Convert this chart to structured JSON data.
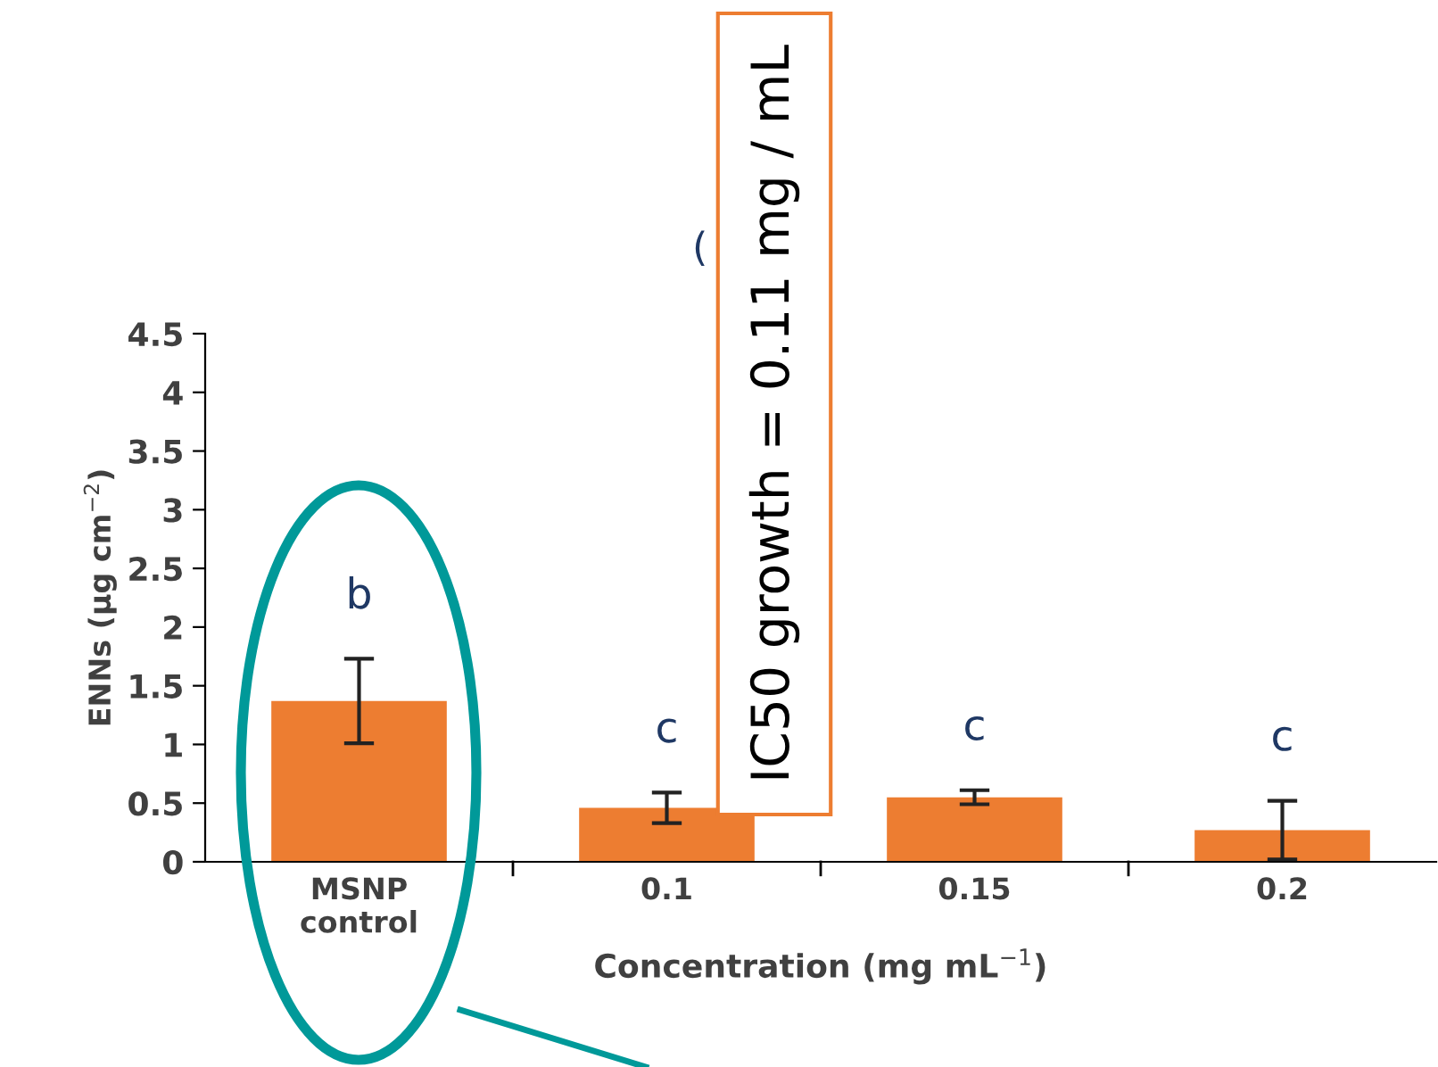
{
  "chart_data": {
    "type": "bar",
    "title": "(",
    "xlabel": "Concentration (mg mL$^{−1}$)",
    "ylabel": "ENNs (µg cm$^{−2}$)",
    "categories": [
      "MSNP\ncontrol",
      "0.1",
      "0.15",
      "0.2"
    ],
    "values": [
      1.37,
      0.46,
      0.55,
      0.27
    ],
    "errors": [
      0.36,
      0.13,
      0.06,
      0.25
    ],
    "color": "#ed7d31",
    "ylim": [
      0,
      4.5
    ],
    "yticks": [
      0,
      0.5,
      1,
      1.5,
      2,
      2.5,
      3,
      3.5,
      4,
      4.5
    ],
    "grid": false,
    "legend": false,
    "annotations": [
      "b",
      "c",
      "c",
      "c",
      "IC50 growth = 0.11 mg / mL"
    ]
  }
}
